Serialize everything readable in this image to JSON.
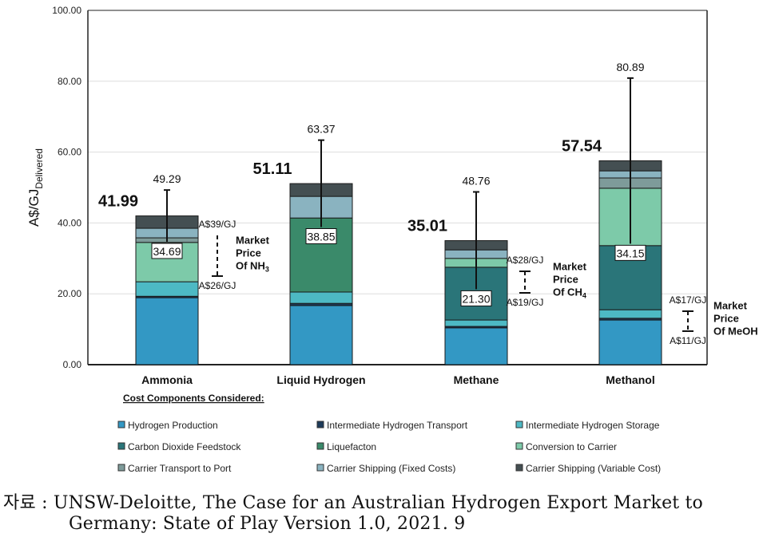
{
  "chart_data": {
    "type": "bar",
    "stacked": true,
    "ylabel": "A$/GJ",
    "ylabel_subscript": "Delivered",
    "ylim": [
      0,
      100
    ],
    "yticks": [
      "0.00",
      "20.00",
      "40.00",
      "60.00",
      "80.00",
      "100.00"
    ],
    "grid": true,
    "legend_title": "Cost Components Considered:",
    "legend_placement": "bottom",
    "categories": [
      "Ammonia",
      "Liquid Hydrogen",
      "Methane",
      "Methanol"
    ],
    "series": [
      {
        "name": "Hydrogen Production",
        "color": "#3398c4",
        "values": [
          18.9,
          16.7,
          10.4,
          12.6
        ]
      },
      {
        "name": "Intermediate Hydrogen Transport",
        "color": "#1d3b5a",
        "values": [
          0.4,
          0.6,
          0.4,
          0.5
        ]
      },
      {
        "name": "Intermediate Hydrogen Storage",
        "color": "#4db9c4",
        "values": [
          4.1,
          3.2,
          1.8,
          2.4
        ]
      },
      {
        "name": "Carbon Dioxide Feedstock",
        "color": "#2a7579",
        "values": [
          0,
          0,
          14.9,
          18.1
        ]
      },
      {
        "name": "Liquefacton",
        "color": "#3a8a6a",
        "values": [
          0,
          20.9,
          0,
          0
        ]
      },
      {
        "name": "Conversion to Carrier",
        "color": "#7dcaa9",
        "values": [
          11.1,
          0,
          2.5,
          16.2
        ]
      },
      {
        "name": "Carrier Transport to Port",
        "color": "#7e9b9a",
        "values": [
          1.3,
          0,
          0,
          2.9
        ]
      },
      {
        "name": "Carrier Shipping (Fixed Costs)",
        "color": "#8ab3c0",
        "values": [
          2.7,
          6.1,
          2.4,
          2.0
        ]
      },
      {
        "name": "Carrier Shipping (Variable Cost)",
        "color": "#444f52",
        "values": [
          3.49,
          3.61,
          2.61,
          2.84
        ]
      }
    ],
    "totals": [
      "41.99",
      "51.11",
      "35.01",
      "57.54"
    ],
    "total_values": [
      41.99,
      51.11,
      35.01,
      57.54
    ],
    "error_low": [
      "34.69",
      "38.85",
      "21.30",
      "34.15"
    ],
    "error_low_values": [
      34.69,
      38.85,
      21.3,
      34.15
    ],
    "error_high": [
      "49.29",
      "63.37",
      "48.76",
      "80.89"
    ],
    "error_high_values": [
      49.29,
      63.37,
      48.76,
      80.89
    ],
    "market_prices": [
      {
        "category": "Ammonia",
        "high_label": "A$39/GJ",
        "low_label": "A$26/GJ",
        "high": 39,
        "low": 26,
        "title": [
          "Market",
          "Price",
          "Of NH",
          "3"
        ]
      },
      {
        "category": "Methane",
        "high_label": "A$28/GJ",
        "low_label": "A$19/GJ",
        "high": 28,
        "low": 19,
        "title": [
          "Market",
          "Price",
          "Of CH",
          "4"
        ]
      },
      {
        "category": "Methanol",
        "high_label": "A$17/GJ",
        "low_label": "A$11/GJ",
        "high": 17,
        "low": 11,
        "title": [
          "Market",
          "Price",
          "Of MeOH",
          ""
        ]
      }
    ]
  },
  "caption": {
    "line1": "자료 : UNSW-Deloitte, The Case for an Australian Hydrogen Export Market to",
    "line2": "Germany: State of Play Version 1.0, 2021. 9"
  }
}
